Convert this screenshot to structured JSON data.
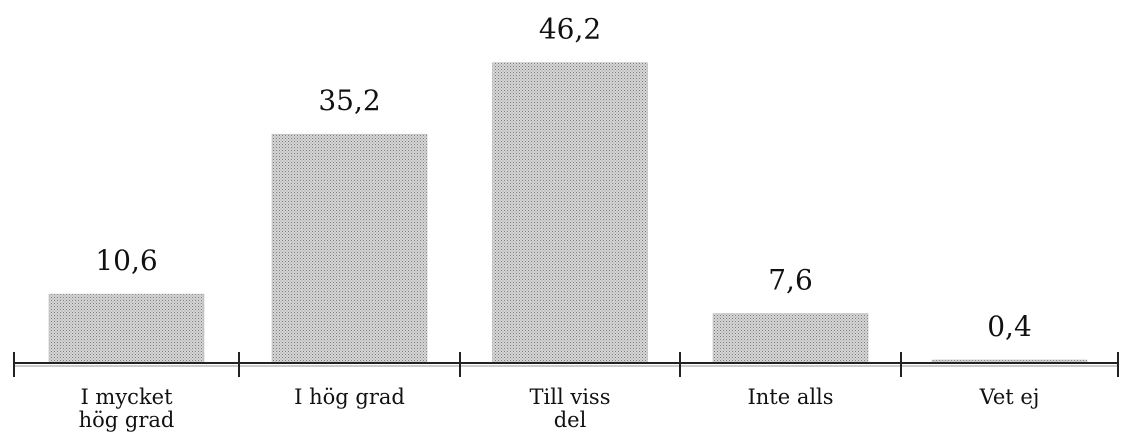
{
  "chart_data": {
    "type": "bar",
    "categories": [
      "I mycket\nhög grad",
      "I hög grad",
      "Till viss\ndel",
      "Inte alls",
      "Vet ej"
    ],
    "values": [
      10.6,
      35.2,
      46.2,
      7.6,
      0.4
    ],
    "value_labels": [
      "10,6",
      "35,2",
      "46,2",
      "7,6",
      "0,4"
    ],
    "title": "",
    "xlabel": "",
    "ylabel": "",
    "ylim": [
      0,
      50
    ],
    "grid": false,
    "legend": "none",
    "bar_color": "#c2c2c2",
    "axis_color": "#222222"
  }
}
